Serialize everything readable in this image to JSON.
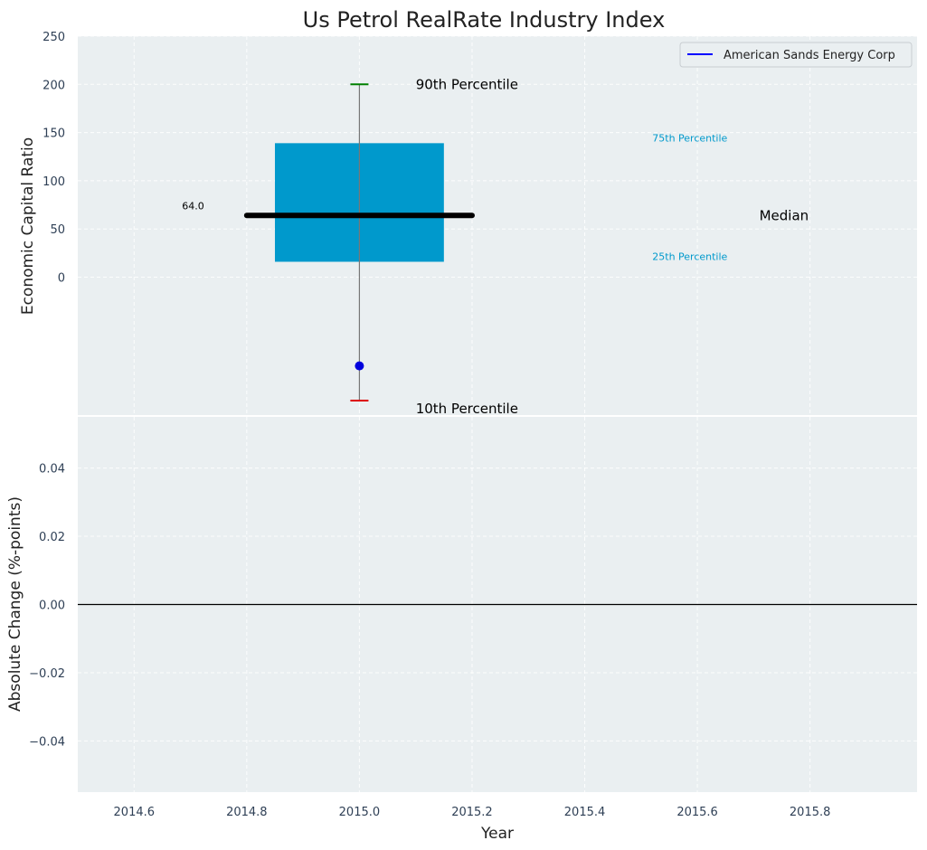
{
  "chart_data": {
    "title": "Us Petrol RealRate Industry Index",
    "xlabel": "Year",
    "x_ticks": [
      2014.6,
      2014.8,
      2015.0,
      2015.2,
      2015.4,
      2015.6,
      2015.8
    ],
    "x_tick_labels": [
      "2014.6",
      "2014.8",
      "2015.0",
      "2015.2",
      "2015.4",
      "2015.6",
      "2015.8"
    ],
    "xlim": [
      2014.5,
      2015.99
    ],
    "grid": true,
    "panels": [
      {
        "type": "box",
        "ylabel": "Economic Capital Ratio",
        "ylim": [
          -143,
          250
        ],
        "y_ticks": [
          0,
          50,
          100,
          150,
          200,
          250
        ],
        "y_tick_labels": [
          "0",
          "50",
          "100",
          "150",
          "200",
          "250"
        ],
        "box": {
          "x": 2015.0,
          "q1": 16,
          "q3": 139,
          "median": 64,
          "p10": -128,
          "p90": 200,
          "box_x_range": [
            2014.85,
            2015.15
          ],
          "median_x_range": [
            2014.8,
            2015.2
          ],
          "color": "#0099cc"
        },
        "company_point": {
          "x": 2015.0,
          "y": -92,
          "color": "#0000dd"
        },
        "annotations": {
          "p90": "90th Percentile",
          "p10": "10th Percentile",
          "p75": "75th Percentile",
          "p25": "25th Percentile",
          "median": "Median",
          "median_value": "64.0"
        },
        "legend": {
          "placement": "top-right",
          "entries": [
            {
              "name": "American Sands Energy Corp",
              "color": "#0000ff"
            }
          ]
        }
      },
      {
        "type": "line",
        "ylabel": "Absolute Change (%-points)",
        "ylim": [
          -0.055,
          0.055
        ],
        "y_ticks": [
          0.04,
          0.02,
          0.0,
          -0.02,
          -0.04
        ],
        "y_tick_labels": [
          "0.04",
          "0.02",
          "0.00",
          "−0.02",
          "−0.04"
        ],
        "baseline": 0.0
      }
    ]
  }
}
